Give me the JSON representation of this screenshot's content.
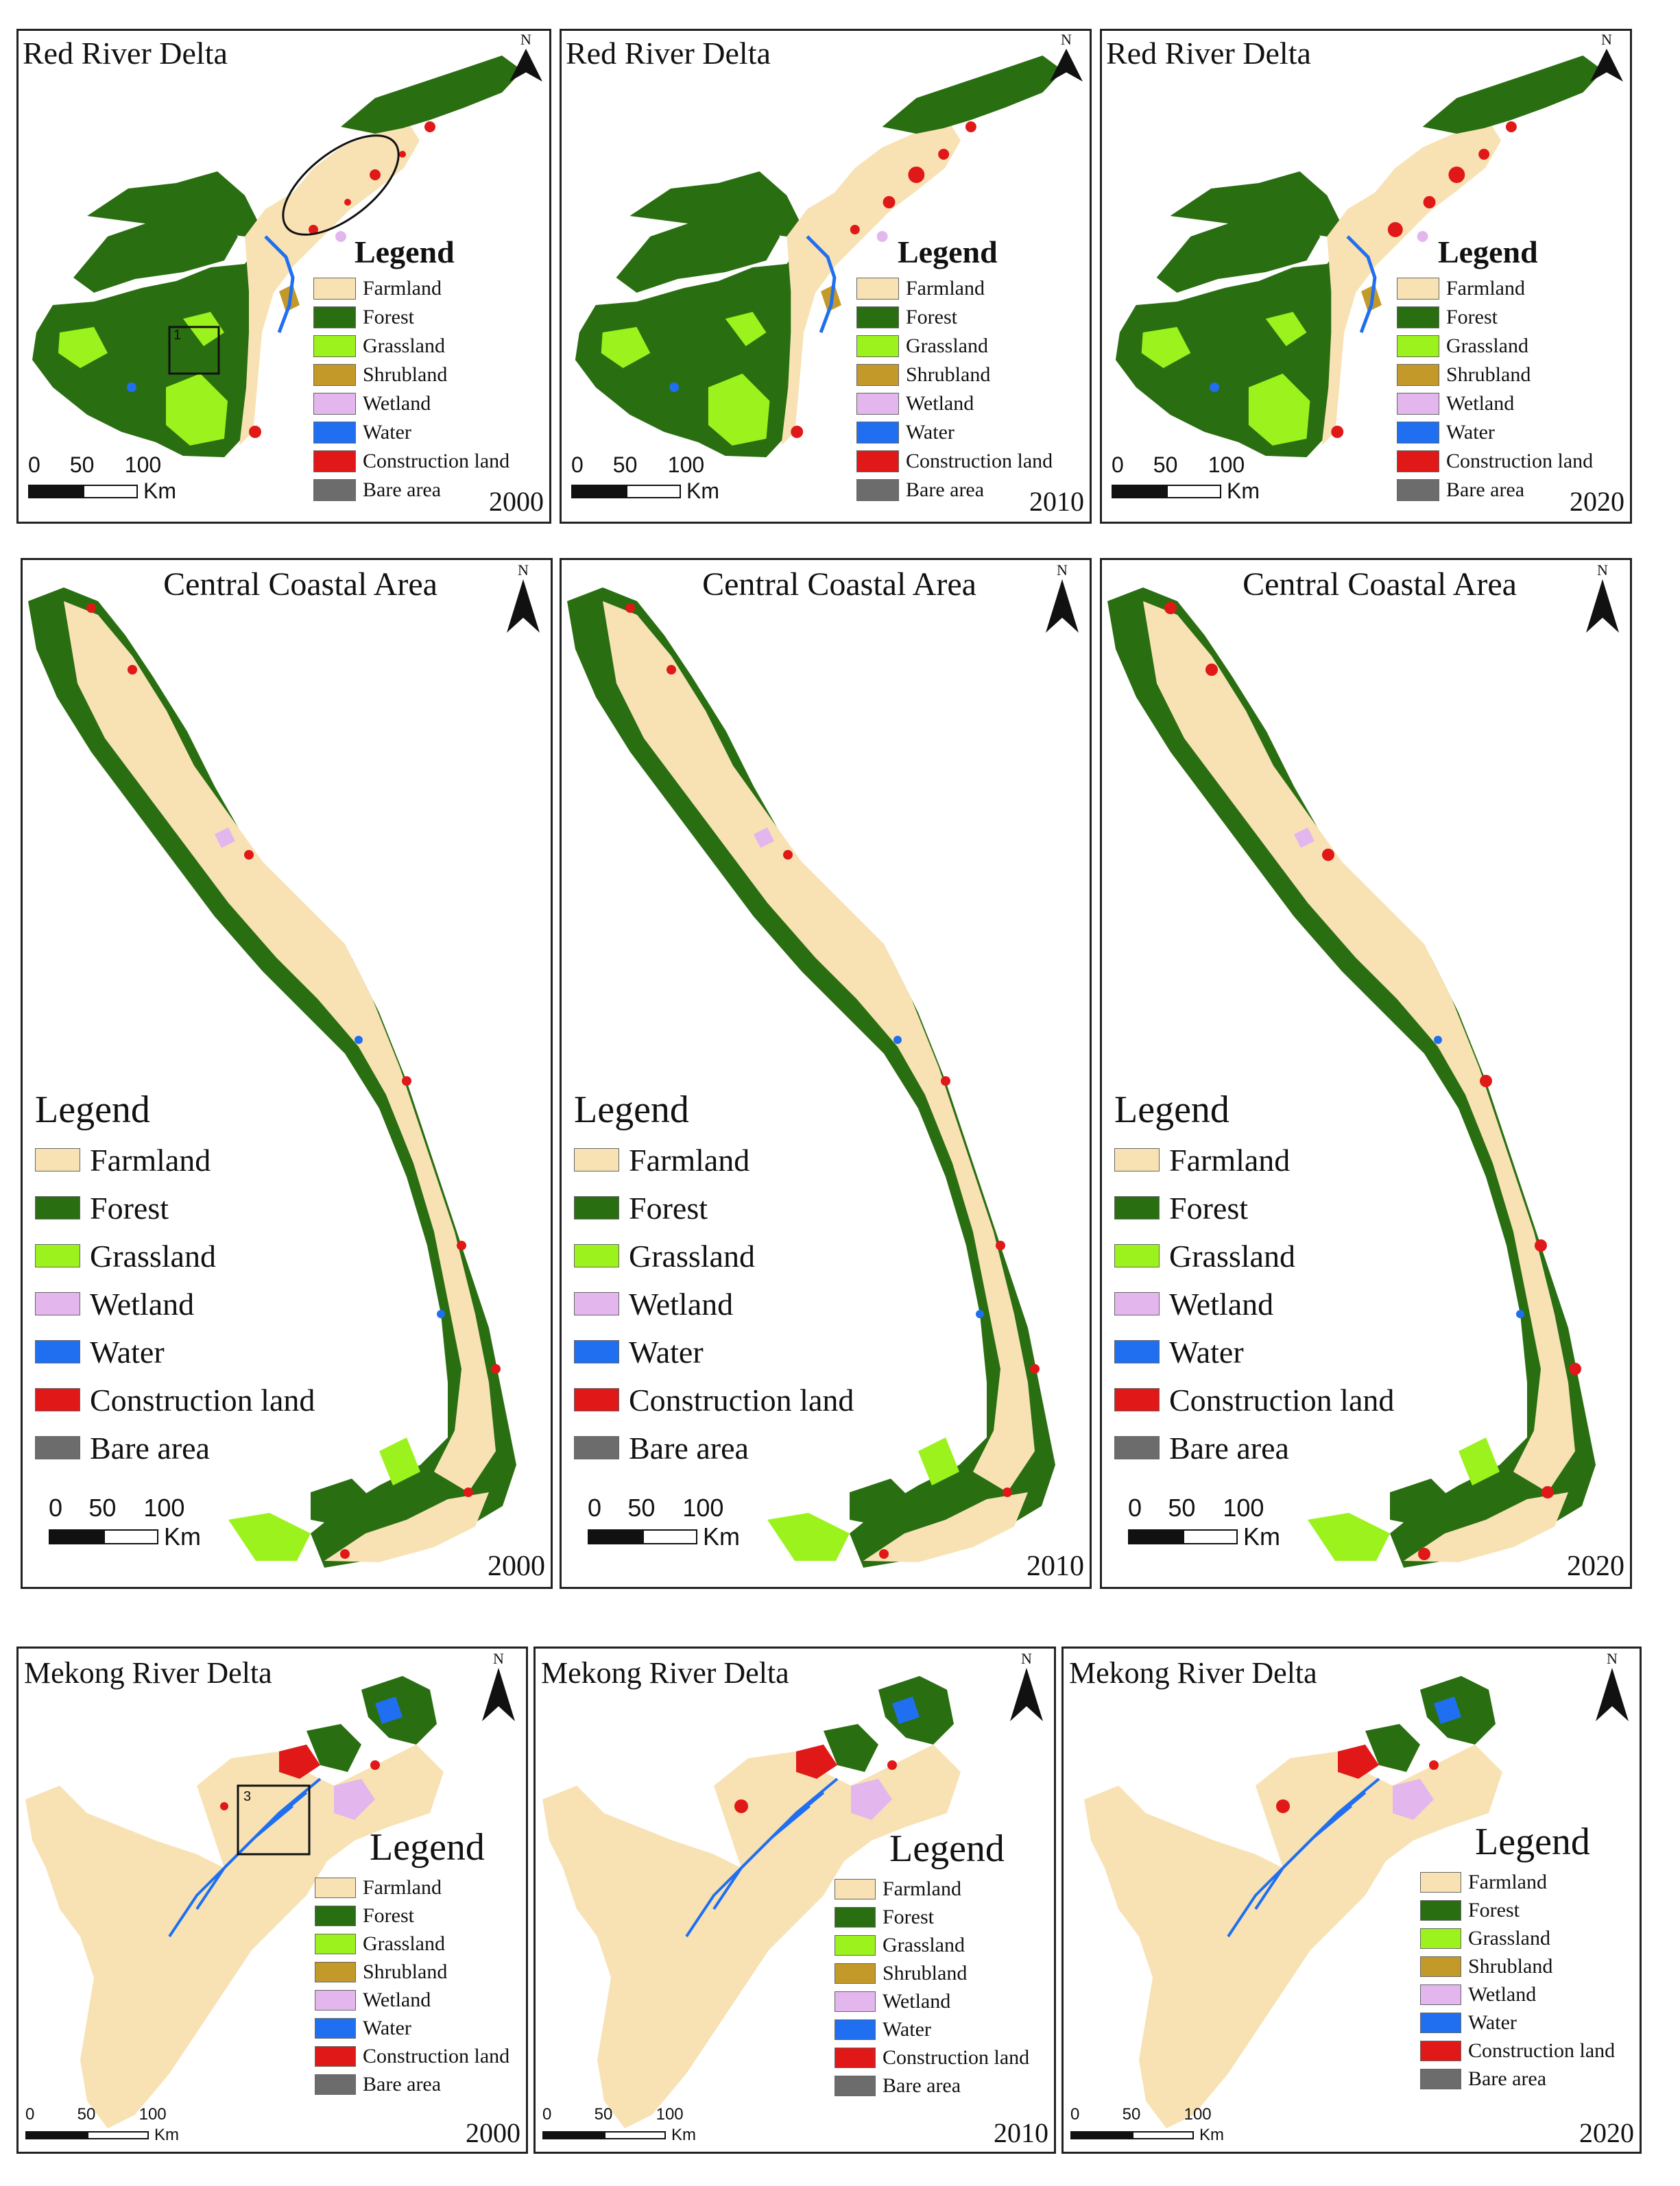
{
  "regions": {
    "red_river": {
      "title": "Red River Delta",
      "scale_ticks": [
        "0",
        "50",
        "100"
      ],
      "scale_unit": "Km",
      "legend": {
        "title": "Legend",
        "items": [
          "Farmland",
          "Forest",
          "Grassland",
          "Shrubland",
          "Wetland",
          "Water",
          "Construction land",
          "Bare area"
        ]
      },
      "years": [
        "2000",
        "2010",
        "2020"
      ],
      "inset_labels": [
        "1"
      ]
    },
    "central": {
      "title": "Central Coastal Area",
      "scale_ticks": [
        "0",
        "50",
        "100"
      ],
      "scale_unit": "Km",
      "legend": {
        "title": "Legend",
        "items": [
          "Farmland",
          "Forest",
          "Grassland",
          "Wetland",
          "Water",
          "Construction land",
          "Bare area"
        ]
      },
      "years": [
        "2000",
        "2010",
        "2020"
      ]
    },
    "mekong": {
      "title": "Mekong River Delta",
      "scale_ticks": [
        "0",
        "50",
        "100"
      ],
      "scale_unit": "Km",
      "legend": {
        "title": "Legend",
        "items": [
          "Farmland",
          "Forest",
          "Grassland",
          "Shrubland",
          "Wetland",
          "Water",
          "Construction land",
          "Bare area"
        ]
      },
      "years": [
        "2000",
        "2010",
        "2020"
      ],
      "inset_labels": [
        "3"
      ]
    }
  },
  "north_label": "N",
  "land_cover_colors": {
    "Farmland": "#f8e2b4",
    "Forest": "#2a6e12",
    "Grassland": "#9cf21c",
    "Shrubland": "#c39a2a",
    "Wetland": "#e3b6ee",
    "Water": "#1f6ff0",
    "Construction land": "#e01818",
    "Bare area": "#6c6c6c"
  }
}
